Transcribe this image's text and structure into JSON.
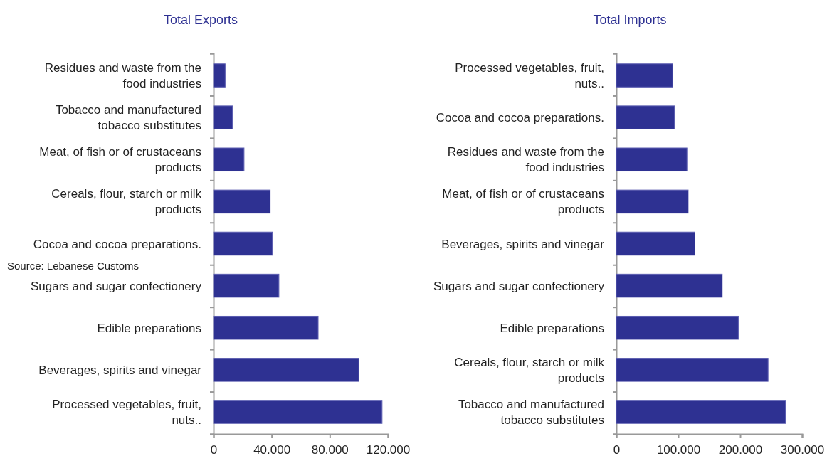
{
  "chart_data": [
    {
      "type": "bar",
      "orientation": "horizontal",
      "title": "Total Exports",
      "categories": [
        "Residues and waste from the food industries",
        "Tobacco and manufactured tobacco substitutes",
        "Meat, of fish or of crustaceans products",
        "Cereals, flour, starch or milk products",
        "Cocoa and cocoa preparations.",
        "Sugars and sugar confectionery",
        "Edible preparations",
        "Beverages, spirits and vinegar",
        "Processed vegetables, fruit, nuts.."
      ],
      "values": [
        8000,
        13000,
        21000,
        39000,
        40500,
        45000,
        72000,
        100000,
        116000
      ],
      "color": "#2e3192",
      "xlim": [
        0,
        120000
      ],
      "xticks": [
        0,
        {
          "value": 40000,
          "label": "40.000"
        },
        {
          "value": 80000,
          "label": "80.000"
        },
        {
          "value": 120000,
          "label": "120.000"
        }
      ],
      "grid": false,
      "annotations": [
        "Source: Lebanese Customs"
      ]
    },
    {
      "type": "bar",
      "orientation": "horizontal",
      "title": "Total Imports",
      "categories": [
        "Processed vegetables, fruit, nuts..",
        "Cocoa and cocoa preparations.",
        "Residues and waste from the food industries",
        "Meat, of fish or of crustaceans products",
        "Beverages, spirits and vinegar",
        "Sugars and sugar confectionery",
        "Edible preparations",
        "Cereals, flour, starch or milk products",
        "Tobacco and manufactured tobacco substitutes"
      ],
      "values": [
        91000,
        94000,
        114000,
        116000,
        127000,
        171000,
        197000,
        245000,
        273000
      ],
      "color": "#2e3192",
      "xlim": [
        0,
        300000
      ],
      "xticks": [
        0,
        {
          "value": 100000,
          "label": "100.000"
        },
        {
          "value": 200000,
          "label": "200.000"
        },
        {
          "value": 300000,
          "label": "300.000"
        }
      ],
      "grid": false
    }
  ]
}
